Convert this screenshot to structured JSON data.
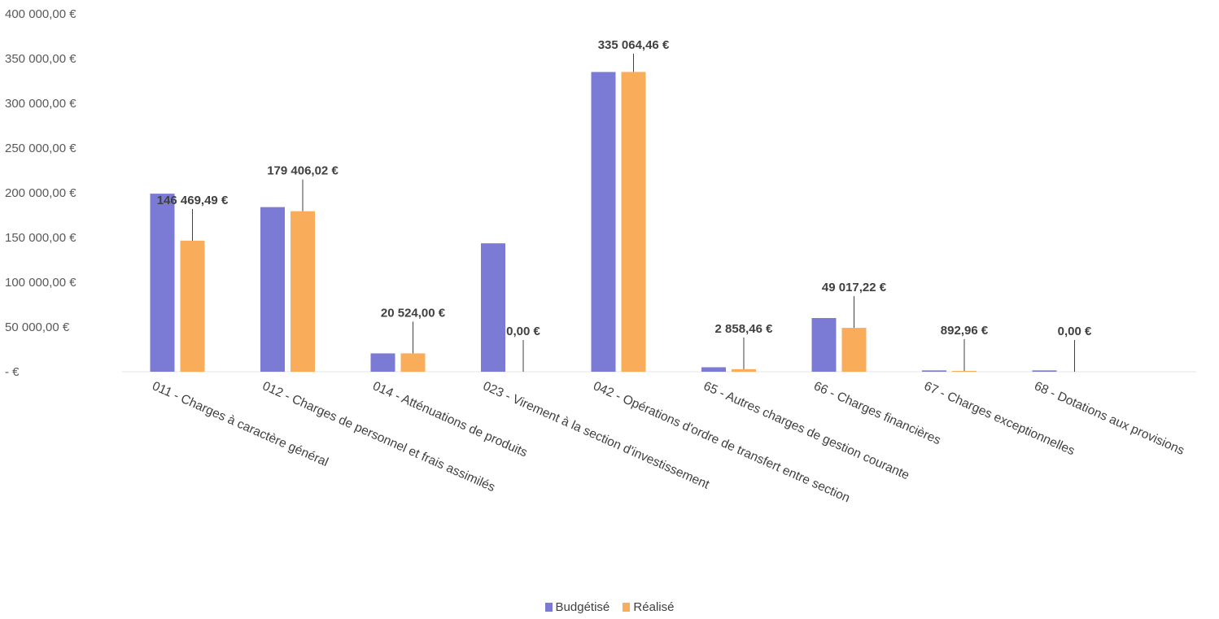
{
  "chart_data": {
    "type": "bar",
    "title": "",
    "xlabel": "",
    "ylabel": "",
    "ylim": [
      0,
      400000
    ],
    "yticks": [
      {
        "value": 400000,
        "label": "400 000,00 €"
      },
      {
        "value": 350000,
        "label": "350 000,00 €"
      },
      {
        "value": 300000,
        "label": "300 000,00 €"
      },
      {
        "value": 250000,
        "label": "250 000,00 €"
      },
      {
        "value": 200000,
        "label": "200 000,00 €"
      },
      {
        "value": 150000,
        "label": "150 000,00 €"
      },
      {
        "value": 100000,
        "label": "100 000,00 €"
      },
      {
        "value": 50000,
        "label": "50 000,00 €"
      },
      {
        "value": 0,
        "label": "- €"
      }
    ],
    "grid": false,
    "legend_position": "bottom",
    "categories": [
      "011 - Charges à caractère général",
      "012 - Charges de personnel et frais assimilés",
      "014 - Atténuations de produits",
      "023 - Virement à la section d'investissement",
      "042 - Opérations d'ordre de transfert entre section",
      "65 - Autres charges de gestion courante",
      "66 - Charges financières",
      "67 - Charges exceptionnelles",
      "68 - Dotations aux provisions"
    ],
    "series": [
      {
        "name": "Budgétisé",
        "color": "#7b7bd6",
        "values": [
          199000,
          184000,
          20500,
          143500,
          335000,
          5000,
          60000,
          1500,
          1500
        ]
      },
      {
        "name": "Réalisé",
        "color": "#f9ac5a",
        "values": [
          146469.49,
          179406.02,
          20524.0,
          0,
          335064.46,
          2858.46,
          49017.22,
          892.96,
          0
        ]
      }
    ],
    "data_labels": [
      "146 469,49 €",
      "179 406,02 €",
      "20 524,00 €",
      "0,00 €",
      "335 064,46 €",
      "2 858,46 €",
      "49 017,22 €",
      "892,96 €",
      "0,00 €"
    ]
  }
}
